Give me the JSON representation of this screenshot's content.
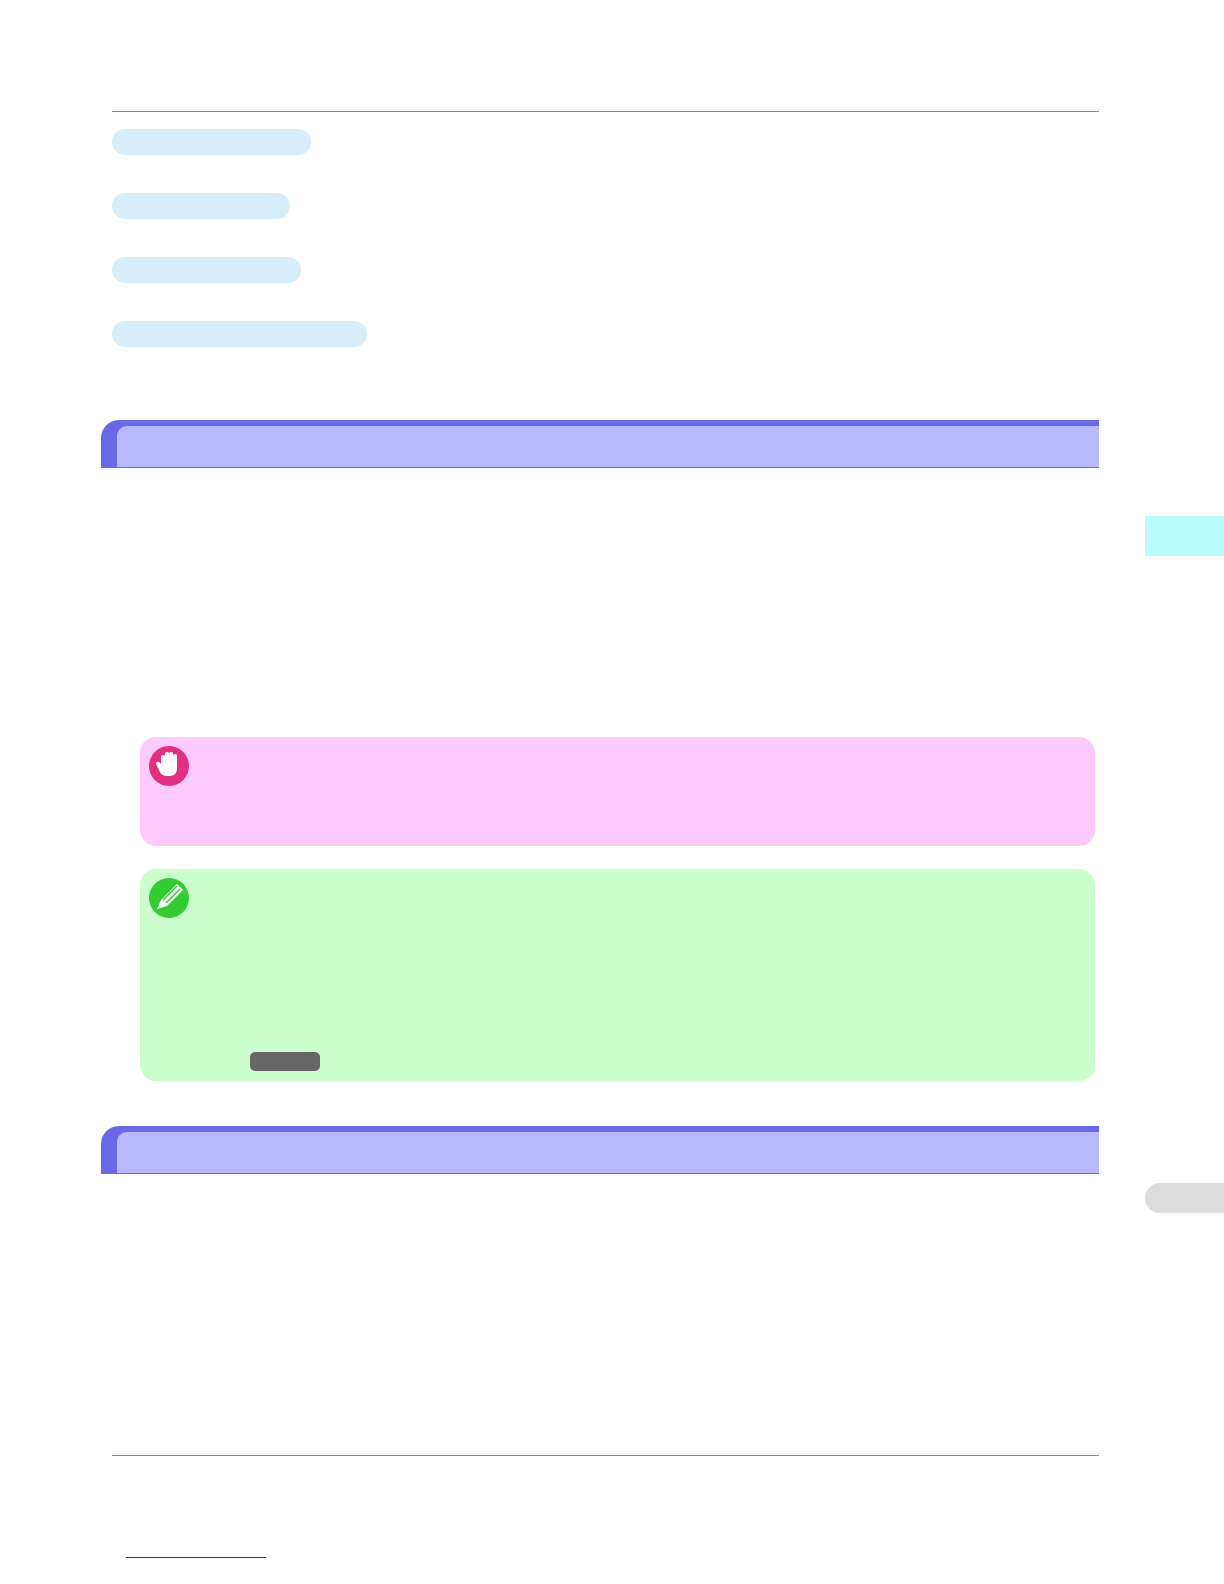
{
  "colors": {
    "link_background": "#d6eefc",
    "section_header_outer": "#6b68e8",
    "section_header_inner": "#b8b8fc",
    "important_box": "#fdcafd",
    "note_box": "#ccfdcc",
    "important_icon": "#e0307f",
    "note_icon": "#33cc33",
    "chapter_tab_active": "#bbfdfd",
    "chapter_tab_inactive": "#dcdcdc",
    "button_graphic": "#666666"
  },
  "icons": {
    "important": "hand-stop-icon",
    "note": "pencil-icon"
  }
}
